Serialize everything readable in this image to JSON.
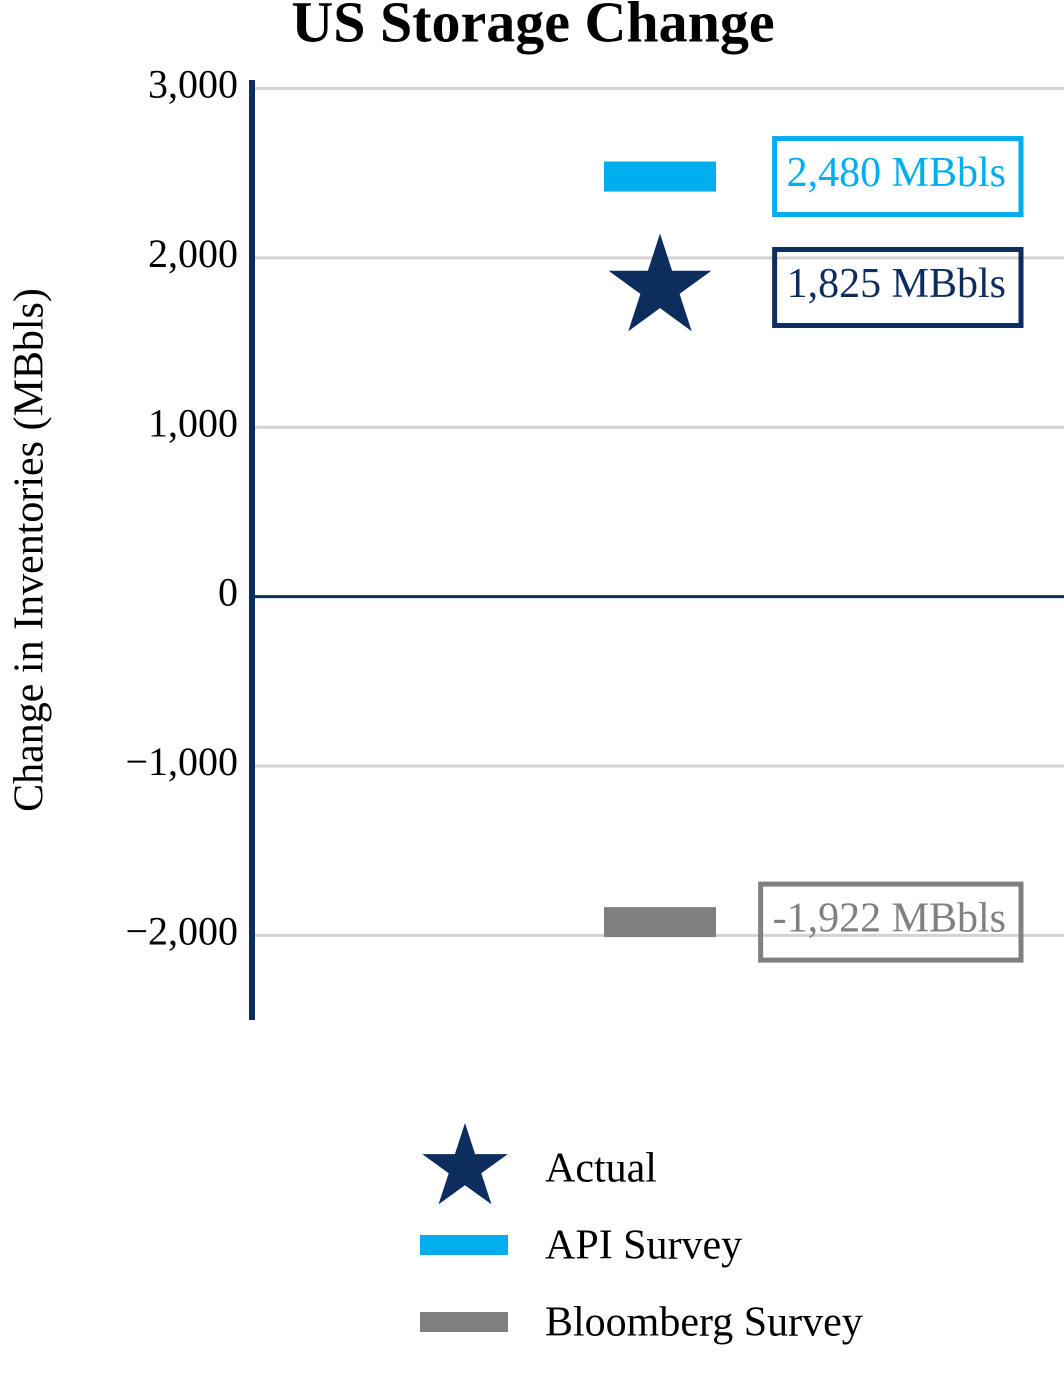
{
  "chart_data": {
    "type": "marker",
    "title": "US Storage Change",
    "y_label": "Change in Inventories (MBbls)",
    "categories": [
      null
    ],
    "series": [
      {
        "name": "Actual",
        "color": "#0d2d5e",
        "marker": "star",
        "values": [
          1825
        ],
        "value_labels": [
          "1,825 MBbls"
        ]
      },
      {
        "name": "API Survey",
        "color": "#00adef",
        "marker": "bar",
        "values": [
          2480
        ],
        "value_labels": [
          "2,480 MBbls"
        ]
      },
      {
        "name": "Bloomberg Survey",
        "color": "#808080",
        "marker": "bar",
        "values": [
          -1922
        ],
        "value_labels": [
          "-1,922 MBbls"
        ]
      }
    ],
    "ylim": [
      -2500,
      3050
    ],
    "yticks": [
      {
        "value": -2000,
        "label": "−2,000"
      },
      {
        "value": -1000,
        "label": "−1,000"
      },
      0,
      {
        "value": 1000,
        "label": "1,000"
      },
      {
        "value": 2000,
        "label": "2,000"
      },
      {
        "value": 3000,
        "label": "3,000"
      }
    ],
    "grid": true
  }
}
